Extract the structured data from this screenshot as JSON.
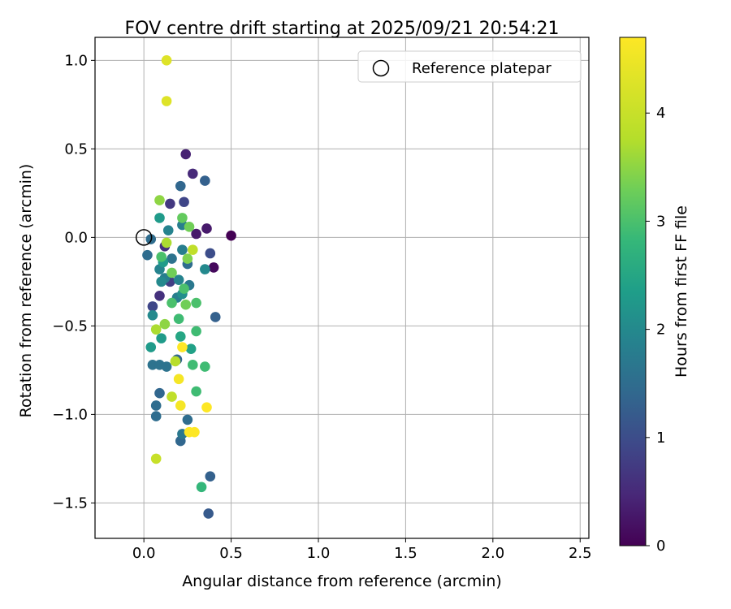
{
  "chart_data": {
    "type": "scatter",
    "title": "FOV centre drift starting at 2025/09/21 20:54:21",
    "xlabel": "Angular distance from reference (arcmin)",
    "ylabel": "Rotation from reference (arcmin)",
    "xlim": [
      -0.28,
      2.55
    ],
    "ylim": [
      -1.7,
      1.13
    ],
    "xticks": [
      0.0,
      0.5,
      1.0,
      1.5,
      2.0,
      2.5
    ],
    "xtick_labels": [
      "0.0",
      "0.5",
      "1.0",
      "1.5",
      "2.0",
      "2.5"
    ],
    "yticks": [
      1.0,
      0.5,
      0.0,
      -0.5,
      -1.0,
      -1.5
    ],
    "ytick_labels": [
      "1.0",
      "0.5",
      "0.0",
      "−0.5",
      "−1.0",
      "−1.5"
    ],
    "grid": true,
    "legend": {
      "position": "top-right",
      "entries": [
        {
          "label": "Reference platepar",
          "marker": "open-circle"
        }
      ]
    },
    "reference_point": {
      "x": 0.0,
      "y": 0.0,
      "label": "Reference platepar"
    },
    "colorbar": {
      "label": "Hours from first FF file",
      "range": [
        0,
        4.7
      ],
      "ticks": [
        0,
        1,
        2,
        3,
        4
      ],
      "tick_labels": [
        "0",
        "1",
        "2",
        "3",
        "4"
      ],
      "colormap": "viridis"
    },
    "series": [
      {
        "name": "FOV centre",
        "points": [
          {
            "x": 0.5,
            "y": 0.01,
            "h": 0.0
          },
          {
            "x": 0.4,
            "y": -0.17,
            "h": 0.1
          },
          {
            "x": 0.24,
            "y": 0.47,
            "h": 0.4
          },
          {
            "x": 0.28,
            "y": 0.36,
            "h": 0.5
          },
          {
            "x": 0.3,
            "y": 0.02,
            "h": 0.3
          },
          {
            "x": 0.36,
            "y": 0.05,
            "h": 0.3
          },
          {
            "x": 0.15,
            "y": 0.19,
            "h": 0.7
          },
          {
            "x": 0.09,
            "y": -0.33,
            "h": 0.6
          },
          {
            "x": 0.12,
            "y": -0.05,
            "h": 0.6
          },
          {
            "x": 0.15,
            "y": -0.25,
            "h": 0.8
          },
          {
            "x": 0.23,
            "y": 0.2,
            "h": 0.9
          },
          {
            "x": 0.05,
            "y": -0.39,
            "h": 0.9
          },
          {
            "x": 0.38,
            "y": -0.09,
            "h": 1.0
          },
          {
            "x": 0.35,
            "y": 0.32,
            "h": 1.3
          },
          {
            "x": 0.21,
            "y": 0.29,
            "h": 1.4
          },
          {
            "x": 0.41,
            "y": -0.45,
            "h": 1.3
          },
          {
            "x": 0.38,
            "y": -1.35,
            "h": 1.3
          },
          {
            "x": 0.37,
            "y": -1.56,
            "h": 1.2
          },
          {
            "x": 0.21,
            "y": -1.15,
            "h": 1.4
          },
          {
            "x": 0.25,
            "y": -1.03,
            "h": 1.5
          },
          {
            "x": 0.22,
            "y": -1.11,
            "h": 1.7
          },
          {
            "x": 0.07,
            "y": -1.01,
            "h": 1.5
          },
          {
            "x": 0.07,
            "y": -0.95,
            "h": 1.5
          },
          {
            "x": 0.09,
            "y": -0.88,
            "h": 1.4
          },
          {
            "x": 0.05,
            "y": -0.72,
            "h": 1.6
          },
          {
            "x": 0.09,
            "y": -0.72,
            "h": 1.6
          },
          {
            "x": 0.13,
            "y": -0.73,
            "h": 1.6
          },
          {
            "x": 0.19,
            "y": -0.69,
            "h": 1.4
          },
          {
            "x": 0.02,
            "y": -0.1,
            "h": 1.5
          },
          {
            "x": 0.04,
            "y": -0.01,
            "h": 1.5
          },
          {
            "x": 0.14,
            "y": 0.04,
            "h": 1.9
          },
          {
            "x": 0.22,
            "y": 0.07,
            "h": 1.8
          },
          {
            "x": 0.16,
            "y": -0.12,
            "h": 1.6
          },
          {
            "x": 0.25,
            "y": -0.15,
            "h": 1.5
          },
          {
            "x": 0.22,
            "y": -0.07,
            "h": 1.8
          },
          {
            "x": 0.12,
            "y": -0.23,
            "h": 1.8
          },
          {
            "x": 0.09,
            "y": -0.18,
            "h": 1.9
          },
          {
            "x": 0.1,
            "y": -0.25,
            "h": 2.0
          },
          {
            "x": 0.2,
            "y": -0.24,
            "h": 1.9
          },
          {
            "x": 0.26,
            "y": -0.27,
            "h": 1.7
          },
          {
            "x": 0.19,
            "y": -0.34,
            "h": 1.8
          },
          {
            "x": 0.35,
            "y": -0.18,
            "h": 2.0
          },
          {
            "x": 0.05,
            "y": -0.44,
            "h": 2.0
          },
          {
            "x": 0.22,
            "y": -0.32,
            "h": 2.1
          },
          {
            "x": 0.04,
            "y": -0.62,
            "h": 2.3
          },
          {
            "x": 0.1,
            "y": -0.57,
            "h": 2.3
          },
          {
            "x": 0.09,
            "y": 0.11,
            "h": 2.3
          },
          {
            "x": 0.11,
            "y": -0.14,
            "h": 2.3
          },
          {
            "x": 0.27,
            "y": -0.63,
            "h": 2.4
          },
          {
            "x": 0.21,
            "y": -0.56,
            "h": 2.5
          },
          {
            "x": 0.3,
            "y": -0.87,
            "h": 2.9
          },
          {
            "x": 0.28,
            "y": -0.72,
            "h": 2.9
          },
          {
            "x": 0.35,
            "y": -0.73,
            "h": 2.9
          },
          {
            "x": 0.33,
            "y": -1.41,
            "h": 2.8
          },
          {
            "x": 0.2,
            "y": -0.46,
            "h": 2.9
          },
          {
            "x": 0.3,
            "y": -0.53,
            "h": 2.9
          },
          {
            "x": 0.3,
            "y": -0.37,
            "h": 3.0
          },
          {
            "x": 0.16,
            "y": -0.37,
            "h": 3.0
          },
          {
            "x": 0.23,
            "y": -0.29,
            "h": 3.0
          },
          {
            "x": 0.1,
            "y": -0.11,
            "h": 3.0
          },
          {
            "x": 0.16,
            "y": -0.2,
            "h": 3.3
          },
          {
            "x": 0.25,
            "y": -0.12,
            "h": 3.4
          },
          {
            "x": 0.24,
            "y": -0.38,
            "h": 3.3
          },
          {
            "x": 0.22,
            "y": 0.11,
            "h": 3.2
          },
          {
            "x": 0.26,
            "y": 0.06,
            "h": 3.3
          },
          {
            "x": 0.09,
            "y": 0.21,
            "h": 3.5
          },
          {
            "x": 0.12,
            "y": -0.49,
            "h": 3.5
          },
          {
            "x": 0.28,
            "y": -0.07,
            "h": 3.9
          },
          {
            "x": 0.13,
            "y": -0.03,
            "h": 3.7
          },
          {
            "x": 0.07,
            "y": -0.52,
            "h": 3.7
          },
          {
            "x": 0.18,
            "y": -0.7,
            "h": 3.8
          },
          {
            "x": 0.16,
            "y": -0.9,
            "h": 3.9
          },
          {
            "x": 0.07,
            "y": -1.25,
            "h": 4.0
          },
          {
            "x": 0.13,
            "y": 0.77,
            "h": 4.3
          },
          {
            "x": 0.13,
            "y": 1.0,
            "h": 4.3
          },
          {
            "x": 0.22,
            "y": -0.62,
            "h": 4.7
          },
          {
            "x": 0.2,
            "y": -0.8,
            "h": 4.6
          },
          {
            "x": 0.21,
            "y": -0.95,
            "h": 4.6
          },
          {
            "x": 0.36,
            "y": -0.96,
            "h": 4.7
          },
          {
            "x": 0.26,
            "y": -1.1,
            "h": 4.7
          },
          {
            "x": 0.29,
            "y": -1.1,
            "h": 4.7
          }
        ]
      }
    ]
  }
}
